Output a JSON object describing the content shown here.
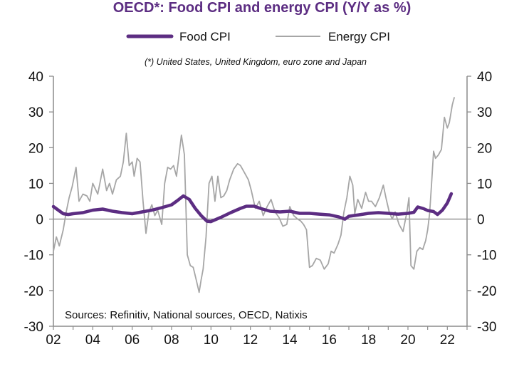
{
  "chart_data": {
    "type": "line",
    "title": "OECD*: Food CPI and energy CPI (Y/Y as %)",
    "note": "(*) United States, United Kingdom, euro zone and Japan",
    "source": "Sources: Refinitiv, National sources, OECD, Natixis",
    "x_tick_labels": [
      "02",
      "04",
      "06",
      "08",
      "10",
      "12",
      "14",
      "16",
      "18",
      "20",
      "22"
    ],
    "y_ticks": [
      -30,
      -20,
      -10,
      0,
      10,
      20,
      30,
      40
    ],
    "ylim": [
      -30,
      40
    ],
    "xlim": [
      2002.0,
      2023.0
    ],
    "legend_position": "top",
    "colors": {
      "food": "#5c2d82",
      "energy": "#a6a6a6",
      "axis": "#8c8c8c"
    },
    "series": [
      {
        "name": "Food CPI",
        "x": [
          2002.0,
          2002.25,
          2002.5,
          2002.75,
          2003.0,
          2003.5,
          2004.0,
          2004.5,
          2005.0,
          2005.5,
          2006.0,
          2006.5,
          2007.0,
          2007.5,
          2008.0,
          2008.3,
          2008.6,
          2008.9,
          2009.2,
          2009.5,
          2009.8,
          2010.0,
          2010.5,
          2011.0,
          2011.5,
          2011.8,
          2012.2,
          2012.5,
          2013.0,
          2013.5,
          2014.0,
          2014.5,
          2015.0,
          2015.5,
          2016.0,
          2016.5,
          2016.8,
          2017.0,
          2017.5,
          2018.0,
          2018.5,
          2019.0,
          2019.5,
          2020.0,
          2020.3,
          2020.5,
          2020.8,
          2021.0,
          2021.3,
          2021.5,
          2021.75,
          2022.0,
          2022.2
        ],
        "values": [
          3.5,
          2.5,
          1.5,
          1.3,
          1.5,
          1.8,
          2.5,
          2.8,
          2.2,
          1.8,
          1.5,
          2.0,
          2.5,
          3.2,
          4.0,
          5.2,
          6.5,
          5.5,
          3.0,
          1.0,
          -0.6,
          -0.7,
          0.5,
          1.8,
          3.0,
          3.6,
          3.6,
          3.0,
          2.2,
          2.0,
          2.2,
          1.6,
          1.6,
          1.4,
          1.2,
          0.6,
          0.0,
          0.8,
          1.2,
          1.6,
          1.8,
          1.6,
          1.4,
          1.6,
          1.9,
          3.4,
          2.9,
          2.4,
          2.1,
          1.3,
          2.5,
          4.5,
          7.1
        ]
      },
      {
        "name": "Energy CPI",
        "x": [
          2002.0,
          2002.15,
          2002.3,
          2002.5,
          2002.65,
          2002.8,
          2002.95,
          2003.15,
          2003.3,
          2003.5,
          2003.7,
          2003.85,
          2004.0,
          2004.25,
          2004.5,
          2004.7,
          2004.85,
          2005.0,
          2005.2,
          2005.4,
          2005.55,
          2005.7,
          2005.85,
          2006.0,
          2006.1,
          2006.25,
          2006.4,
          2006.55,
          2006.7,
          2006.85,
          2007.0,
          2007.15,
          2007.3,
          2007.5,
          2007.65,
          2007.8,
          2007.95,
          2008.1,
          2008.25,
          2008.4,
          2008.5,
          2008.65,
          2008.8,
          2008.95,
          2009.1,
          2009.25,
          2009.4,
          2009.5,
          2009.6,
          2009.75,
          2009.9,
          2010.05,
          2010.2,
          2010.35,
          2010.5,
          2010.65,
          2010.8,
          2010.95,
          2011.15,
          2011.35,
          2011.5,
          2011.7,
          2011.9,
          2012.05,
          2012.25,
          2012.45,
          2012.65,
          2012.85,
          2013.05,
          2013.25,
          2013.45,
          2013.65,
          2013.85,
          2014.0,
          2014.2,
          2014.4,
          2014.55,
          2014.7,
          2014.85,
          2015.0,
          2015.15,
          2015.35,
          2015.55,
          2015.75,
          2015.95,
          2016.1,
          2016.25,
          2016.45,
          2016.6,
          2016.75,
          2016.9,
          2017.05,
          2017.2,
          2017.3,
          2017.45,
          2017.65,
          2017.85,
          2018.0,
          2018.15,
          2018.35,
          2018.55,
          2018.75,
          2018.9,
          2019.05,
          2019.2,
          2019.35,
          2019.55,
          2019.75,
          2019.95,
          2020.05,
          2020.15,
          2020.3,
          2020.45,
          2020.6,
          2020.75,
          2020.9,
          2021.0,
          2021.1,
          2021.2,
          2021.3,
          2021.4,
          2021.55,
          2021.7,
          2021.85,
          2022.0,
          2022.1,
          2022.25,
          2022.35
        ],
        "values": [
          -9.0,
          -5.0,
          -7.5,
          -3.0,
          2.0,
          6.0,
          9.0,
          14.5,
          5.0,
          7.0,
          6.5,
          5.0,
          10.0,
          7.0,
          14.0,
          8.0,
          10.0,
          7.0,
          11.0,
          12.0,
          16.0,
          24.0,
          15.0,
          16.0,
          12.0,
          17.0,
          16.0,
          5.0,
          -4.0,
          2.0,
          4.0,
          1.0,
          2.5,
          -1.5,
          10.0,
          14.5,
          14.0,
          15.0,
          12.0,
          19.0,
          23.5,
          18.0,
          -10.0,
          -13.0,
          -13.5,
          -17.0,
          -20.5,
          -17.0,
          -14.0,
          -5.0,
          10.0,
          12.0,
          5.0,
          12.0,
          6.0,
          6.5,
          8.0,
          11.0,
          14.0,
          15.5,
          15.0,
          13.0,
          11.0,
          8.0,
          3.0,
          5.0,
          1.0,
          3.5,
          5.5,
          2.0,
          0.5,
          -2.0,
          -1.5,
          3.5,
          1.0,
          0.0,
          -0.5,
          -1.5,
          -3.0,
          -13.5,
          -13.0,
          -11.0,
          -11.5,
          -14.0,
          -12.5,
          -9.0,
          -9.5,
          -7.0,
          -4.5,
          2.0,
          6.0,
          12.0,
          9.5,
          1.5,
          5.5,
          3.0,
          7.5,
          5.0,
          5.0,
          3.5,
          6.0,
          9.5,
          5.5,
          2.0,
          0.0,
          2.0,
          -1.5,
          -3.5,
          2.0,
          6.0,
          -13.0,
          -14.0,
          -9.0,
          -8.0,
          -8.5,
          -6.0,
          -3.0,
          1.5,
          10.0,
          19.0,
          17.0,
          18.0,
          19.5,
          28.5,
          25.5,
          27.0,
          32.0,
          34.0
        ]
      }
    ]
  }
}
